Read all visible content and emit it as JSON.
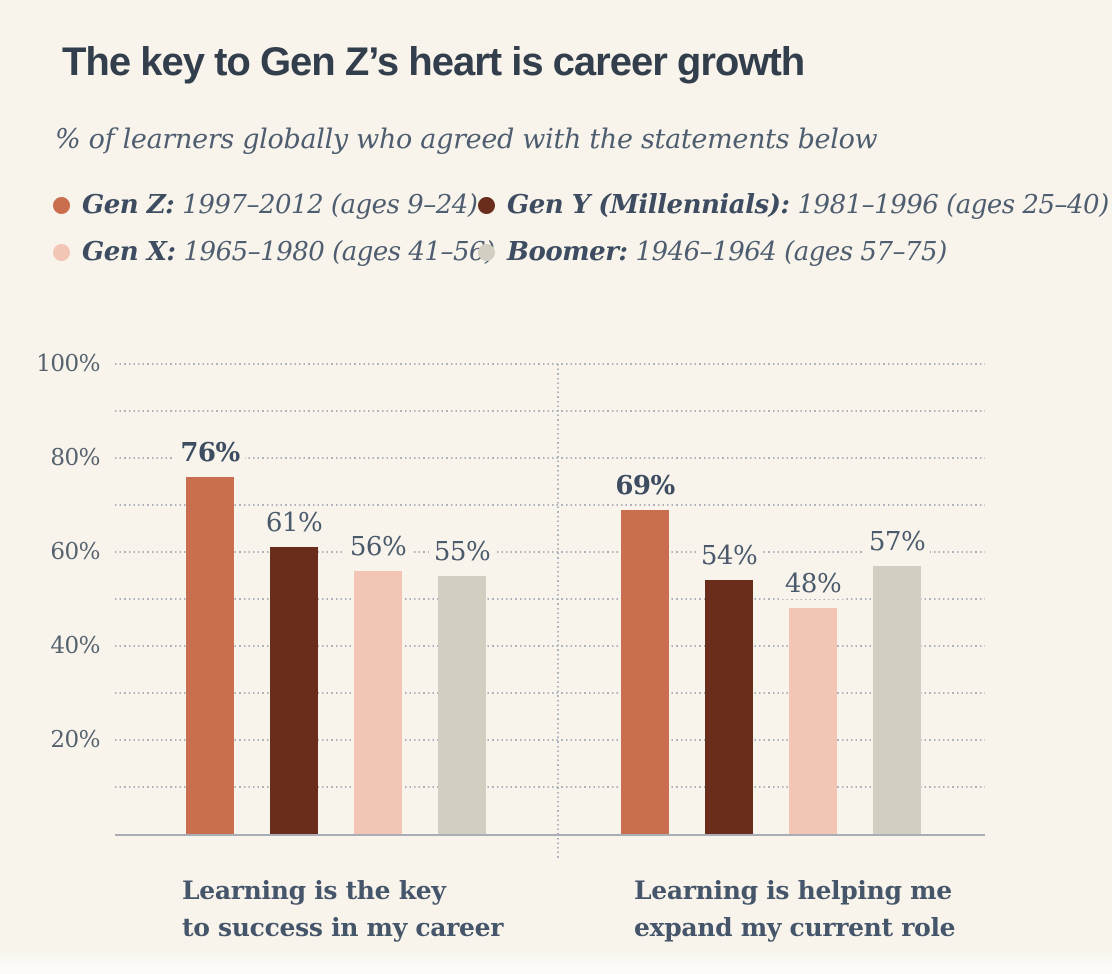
{
  "header": {
    "title": "The key to Gen Z’s heart is career growth",
    "subtitle": "% of learners globally who agreed with the statements below"
  },
  "legend": {
    "items": [
      {
        "name": "Gen Z:",
        "detail": "1997–2012 (ages 9–24)",
        "color": "#c96e4e"
      },
      {
        "name": "Gen Y (Millennials):",
        "detail": "1981–1996 (ages 25–40)",
        "color": "#6a2d1c"
      },
      {
        "name": "Gen X:",
        "detail": "1965–1980 (ages 41–56)",
        "color": "#f2c5b5"
      },
      {
        "name": "Boomer:",
        "detail": "1946–1964 (ages 57–75)",
        "color": "#d2cec2"
      }
    ]
  },
  "chart_data": {
    "type": "bar",
    "title": "The key to Gen Z’s heart is career growth",
    "subtitle": "% of learners globally who agreed with the statements below",
    "categories": [
      "Learning is the key to success in my career",
      "Learning is helping me expand my current role"
    ],
    "categories_display": [
      {
        "line1": "Learning is the key",
        "line2": "to success in my career"
      },
      {
        "line1": "Learning is helping me",
        "line2": "expand my current role"
      }
    ],
    "series": [
      {
        "name": "Gen Z",
        "color": "#c96e4e",
        "values": [
          76,
          69
        ],
        "emphasis": true
      },
      {
        "name": "Gen Y (Millennials)",
        "color": "#6a2d1c",
        "values": [
          61,
          54
        ],
        "emphasis": false
      },
      {
        "name": "Gen X",
        "color": "#f2c5b5",
        "values": [
          56,
          48
        ],
        "emphasis": false
      },
      {
        "name": "Boomer",
        "color": "#d2cec2",
        "values": [
          55,
          57
        ],
        "emphasis": false
      }
    ],
    "ylim": [
      0,
      100
    ],
    "yticks": [
      "20%",
      "40%",
      "60%",
      "80%",
      "100%"
    ],
    "grid": "dotted horizontal lines every 10%, dotted vertical divider between panels",
    "legend_position": "top-left, two columns",
    "value_labels": "percentage shown above each bar"
  }
}
